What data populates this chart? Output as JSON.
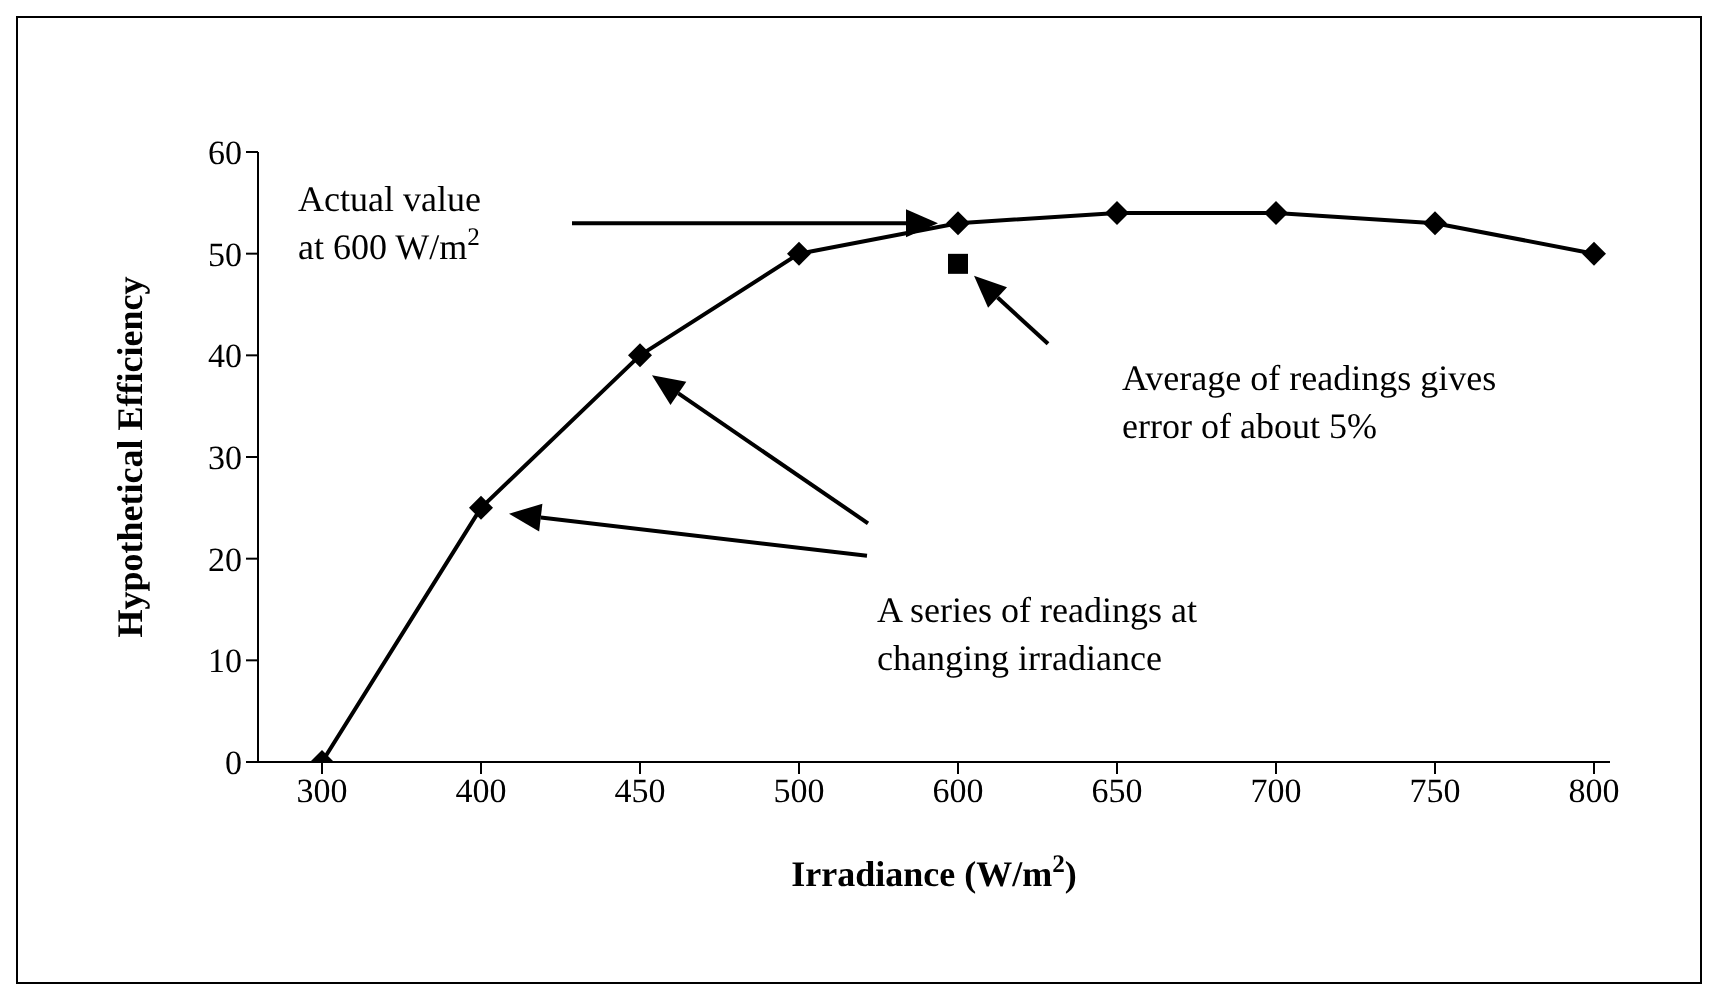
{
  "chart_data": {
    "type": "line",
    "xlabel": "Irradiance (W/m$^{2}$)",
    "ylabel": "Hypothetical Efficiency",
    "categories": [
      "300",
      "400",
      "450",
      "500",
      "600",
      "650",
      "700",
      "750",
      "800"
    ],
    "series": [
      {
        "color": "#000000",
        "values": [
          0,
          25,
          40,
          50,
          53,
          54,
          54,
          53,
          50
        ],
        "marker": "diamond"
      },
      {
        "type": "scatter",
        "color": "#000000",
        "x": [
          "600"
        ],
        "values": [
          49
        ],
        "marker": "square"
      }
    ],
    "ylim": [
      0,
      60
    ],
    "yticks": [
      0,
      10,
      20,
      30,
      40,
      50,
      60
    ],
    "grid": false,
    "annotations": [
      "Actual value at 600 W/m$^{2}$",
      "Average of readings gives error of about 5%",
      "A series of readings at changing irradiance"
    ]
  }
}
